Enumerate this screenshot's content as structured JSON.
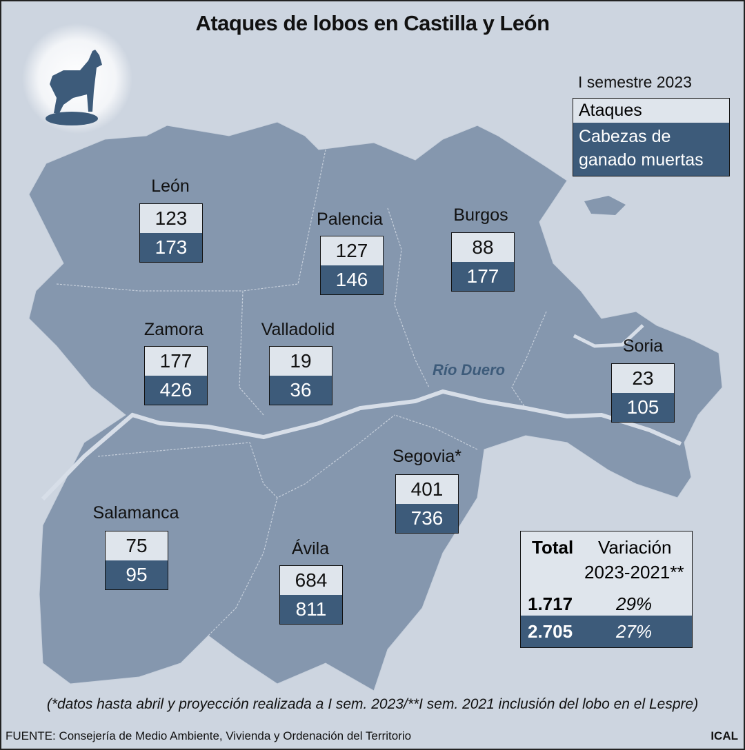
{
  "title": "Ataques de lobos en Castilla y León",
  "legend": {
    "period": "I semestre 2023",
    "attacks": "Ataques",
    "livestock": "Cabezas de ganado muertas"
  },
  "river": "Río Duero",
  "provinces": [
    {
      "name": "León",
      "attacks": "123",
      "livestock": "173"
    },
    {
      "name": "Palencia",
      "attacks": "127",
      "livestock": "146"
    },
    {
      "name": "Burgos",
      "attacks": "88",
      "livestock": "177"
    },
    {
      "name": "Zamora",
      "attacks": "177",
      "livestock": "426"
    },
    {
      "name": "Valladolid",
      "attacks": "19",
      "livestock": "36"
    },
    {
      "name": "Soria",
      "attacks": "23",
      "livestock": "105"
    },
    {
      "name": "Segovia*",
      "attacks": "401",
      "livestock": "736"
    },
    {
      "name": "Salamanca",
      "attacks": "75",
      "livestock": "95"
    },
    {
      "name": "Ávila",
      "attacks": "684",
      "livestock": "811"
    }
  ],
  "summary": {
    "total_header": "Total",
    "variation_header": "Variación",
    "variation_period": "2023-2021**",
    "rows": [
      {
        "total": "1.717",
        "variation": "29%"
      },
      {
        "total": "2.705",
        "variation": "27%"
      }
    ]
  },
  "footnote": "(*datos hasta abril y proyección realizada a I sem. 2023/**I sem. 2021 inclusión del lobo en el Lespre)",
  "source": "FUENTE: Consejería de Medio Ambiente, Vivienda y Ordenación del Territorio",
  "credit": "ICAL"
}
